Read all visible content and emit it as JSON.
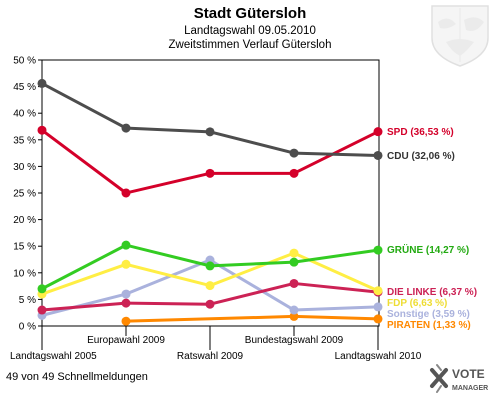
{
  "chart_data": {
    "type": "line",
    "title": "Stadt Gütersloh",
    "subtitle_1": "Landtagswahl 09.05.2010",
    "subtitle_2": "Zweitstimmen Verlauf Gütersloh",
    "x": [
      "Landtagswahl 2005",
      "Europawahl 2009",
      "Ratswahl 2009",
      "Bundestagswahl 2009",
      "Landtagswahl 2010"
    ],
    "ylim": [
      0,
      50
    ],
    "yticks": [
      "0 %",
      "5 %",
      "10 %",
      "15 %",
      "20 %",
      "25 %",
      "30 %",
      "35 %",
      "40 %",
      "45 %",
      "50 %"
    ],
    "grid": false,
    "series": [
      {
        "key": "cdu",
        "label": "CDU (32,06 %)",
        "color": "#4d4d4d",
        "values": [
          45.6,
          37.2,
          36.5,
          32.5,
          32.06
        ]
      },
      {
        "key": "spd",
        "label": "SPD (36,53 %)",
        "color": "#d4002a",
        "values": [
          36.8,
          25.0,
          28.7,
          28.7,
          36.53
        ]
      },
      {
        "key": "gruene",
        "label": "GRÜNE (14,27 %)",
        "color": "#33cc22",
        "values": [
          7.0,
          15.2,
          11.3,
          12.0,
          14.27
        ]
      },
      {
        "key": "fdp",
        "label": "FDP (6,63 %)",
        "color": "#ffee44",
        "values": [
          6.0,
          11.6,
          7.6,
          13.7,
          6.63
        ]
      },
      {
        "key": "linke",
        "label": "DIE LINKE (6,37 %)",
        "color": "#cc2255",
        "values": [
          3.0,
          4.3,
          4.1,
          8.0,
          6.37
        ]
      },
      {
        "key": "sonstige",
        "label": "Sonstige (3,59 %)",
        "color": "#aab2dd",
        "values": [
          2.0,
          6.0,
          12.4,
          3.0,
          3.59
        ]
      },
      {
        "key": "piraten",
        "label": "PIRATEN (1,33 %)",
        "color": "#ff8800",
        "values": [
          null,
          0.9,
          null,
          1.8,
          1.33
        ]
      }
    ]
  },
  "footer": {
    "status": "49 von 49 Schnellmeldungen",
    "brand_line1": "VOTE",
    "brand_line2": "MANAGER"
  },
  "icons": {
    "coat_of_arms": "nrw-coat-of-arms-icon",
    "brand": "votemanager-logo-icon"
  }
}
